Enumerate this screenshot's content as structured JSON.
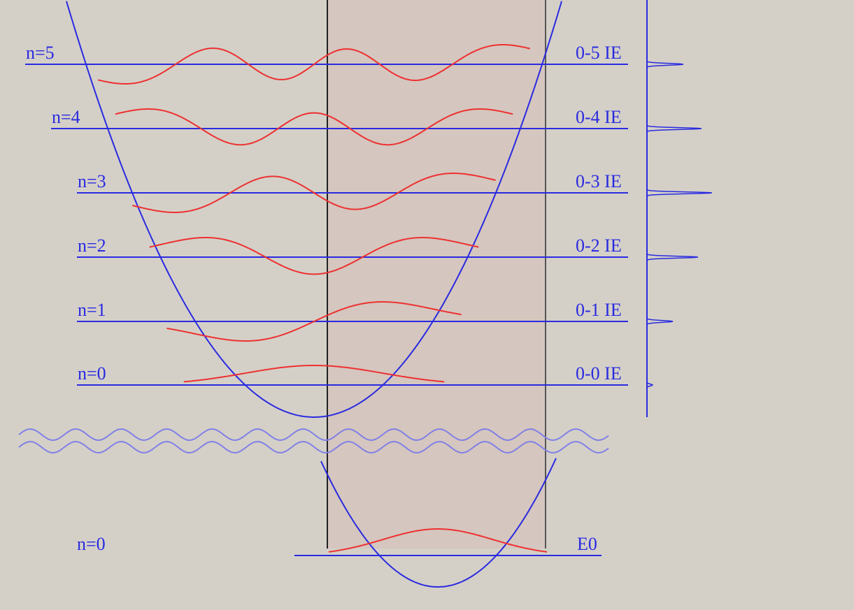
{
  "upper_levels": [
    {
      "label": "n=5",
      "transition": "0-5 IE"
    },
    {
      "label": "n=4",
      "transition": "0-4 IE"
    },
    {
      "label": "n=3",
      "transition": "0-3 IE"
    },
    {
      "label": "n=2",
      "transition": "0-2 IE"
    },
    {
      "label": "n=1",
      "transition": "0-1 IE"
    },
    {
      "label": "n=0",
      "transition": "0-0 IE"
    }
  ],
  "lower_level": {
    "label": "n=0",
    "energy": "E0"
  }
}
